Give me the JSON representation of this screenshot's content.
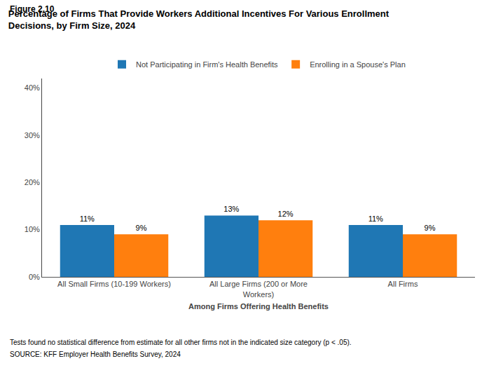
{
  "chart_data": {
    "type": "bar",
    "title": "Percentage of Firms That Provide Workers Additional Incentives For Various Enrollment\nDecisions, by Firm Size, 2024",
    "annotations": [
      "Figure 2.10",
      "Tests found no statistical difference from estimate for all other firms not in the indicated size category (p < .05).",
      "SOURCE: KFF Employer Health Benefits Survey, 2024"
    ],
    "xlabel": "Among Firms Offering Health Benefits",
    "categories": [
      "All Small Firms (10-199 Workers)",
      "All Large Firms (200 or More\nWorkers)",
      "All Firms"
    ],
    "series": [
      {
        "name": "Not Participating in Firm's Health Benefits",
        "values": [
          11,
          13,
          11
        ],
        "value_labels": [
          "11%",
          "13%",
          "11%"
        ]
      },
      {
        "name": "Enrolling in a Spouse's Plan",
        "values": [
          9,
          12,
          9
        ],
        "value_labels": [
          "9%",
          "12%",
          "9%"
        ]
      }
    ],
    "ylim": [
      0,
      42
    ],
    "yticks": [
      {
        "value": 0,
        "label": "0%"
      },
      {
        "value": 10,
        "label": "10%"
      },
      {
        "value": 20,
        "label": "20%"
      },
      {
        "value": 30,
        "label": "30%"
      },
      {
        "value": 40,
        "label": "40%"
      }
    ],
    "grid": false,
    "legend": "top",
    "data_labels": true
  }
}
